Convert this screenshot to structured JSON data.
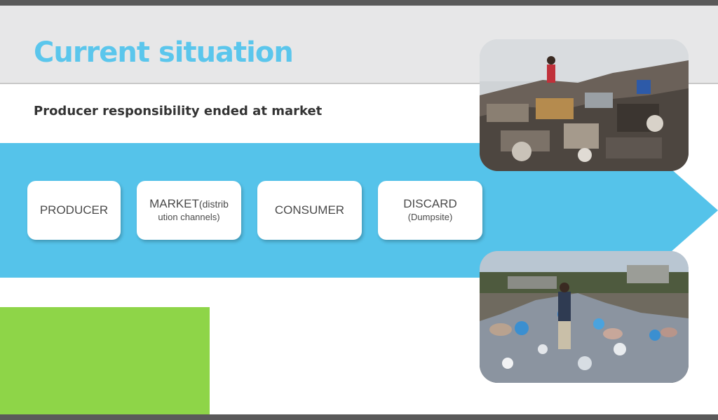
{
  "slide": {
    "title": "Current situation",
    "subtitle": "Producer responsibility ended at market"
  },
  "flow": {
    "steps": [
      {
        "label": "PRODUCER"
      },
      {
        "label": "MARKET",
        "label_small": "(distrib",
        "label_line2": "ution channels)"
      },
      {
        "label": "CONSUMER"
      },
      {
        "label": "DISCARD",
        "label_line2": "(Dumpsite)"
      }
    ]
  },
  "colors": {
    "title": "#5bc6ec",
    "arrow": "#55c3ea",
    "header_band": "#e7e7e8",
    "accent_green": "#8ed548",
    "frame_bars": "#5a5a5a"
  },
  "images": [
    {
      "depicts": "dumpsite-with-person-on-rubbish-heap"
    },
    {
      "depicts": "person-standing-in-plastic-waste-field-with-pigs"
    }
  ]
}
